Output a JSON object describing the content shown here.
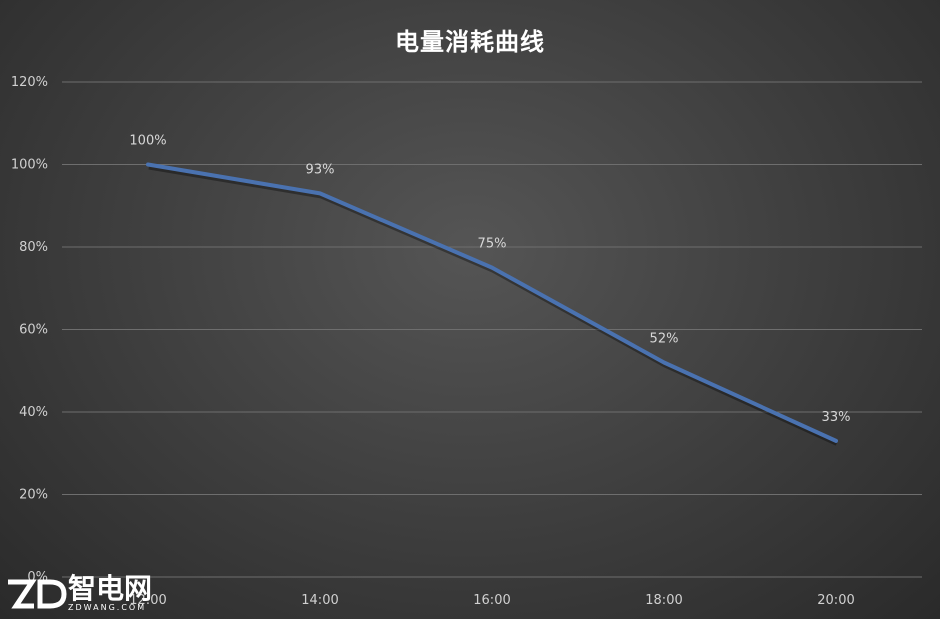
{
  "chart_data": {
    "type": "line",
    "title": "电量消耗曲线",
    "categories": [
      "12:00",
      "14:00",
      "16:00",
      "18:00",
      "20:00"
    ],
    "series": [
      {
        "values": [
          100,
          93,
          75,
          52,
          33
        ],
        "color": "#4a72b0"
      }
    ],
    "data_labels": [
      "100%",
      "93%",
      "75%",
      "52%",
      "33%"
    ],
    "y_ticks": [
      "0%",
      "20%",
      "40%",
      "60%",
      "80%",
      "100%",
      "120%"
    ],
    "y_tick_values": [
      0,
      20,
      40,
      60,
      80,
      100,
      120
    ],
    "ylim": [
      0,
      120
    ],
    "xlabel": "",
    "ylabel": "",
    "grid": true,
    "legend": "none"
  },
  "watermark": {
    "logo_text": "ZD",
    "brand_cn": "智电网",
    "brand_en": "ZDWANG.COM"
  }
}
